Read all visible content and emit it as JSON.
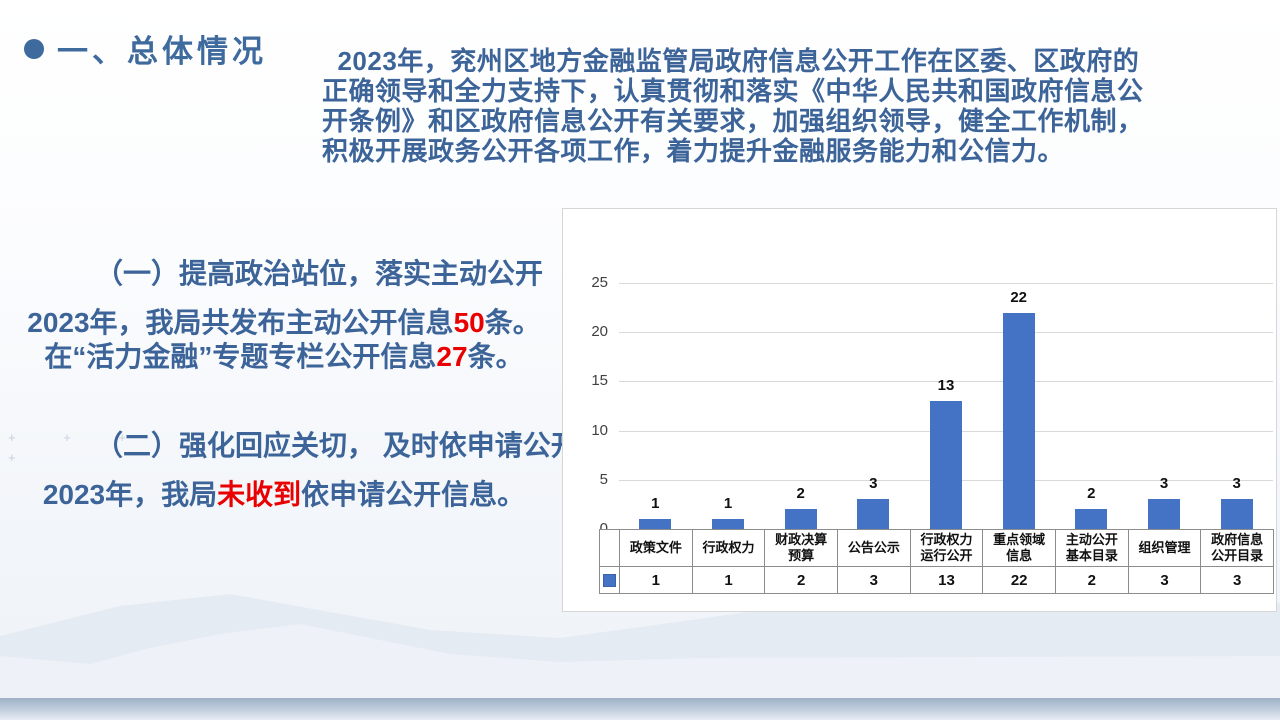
{
  "slide": {
    "title": "一、总体情况",
    "intro": "  2023年，兖州区地方金融监管局政府信息公开工作在区委、区政府的\n正确领导和全力支持下，认真贯彻和落实《中华人民共和国政府信息公\n开条例》和区政府信息公开有关要求，加强组织领导，健全工作机制，\n积极开展政务公开各项工作，着力提升金融服务能力和公信力。",
    "section1": {
      "heading": "（一）提高政治站位，落实主动公开",
      "line1_pre": "2023年，我局共发布主动公开信息",
      "line1_red": "50",
      "line1_post": "条。",
      "line2_pre": "在“活力金融”专题专栏公开信息",
      "line2_red": "27",
      "line2_post": "条。"
    },
    "section2": {
      "heading": "（二）强化回应关切， 及时依申请公开",
      "line_pre": "2023年，我局",
      "line_red": "未收到",
      "line_post": "依申请公开信息。"
    },
    "colors": {
      "text_blue": "#3c6499",
      "bar_blue": "#4472c4",
      "highlight_red": "#e90000"
    }
  },
  "chart_data": {
    "type": "bar",
    "title": "",
    "categories": [
      "政策文件",
      "行政权力",
      "财政决算\n预算",
      "公告公示",
      "行政权力\n运行公开",
      "重点领域\n信息",
      "主动公开\n基本目录",
      "组织管理",
      "政府信息\n公开目录"
    ],
    "values": [
      1,
      1,
      2,
      3,
      13,
      22,
      2,
      3,
      3
    ],
    "xlabel": "",
    "ylabel": "",
    "ylim": [
      0,
      25
    ],
    "yticks": [
      0,
      5,
      10,
      15,
      20,
      25
    ],
    "grid": true,
    "bar_color": "#4472c4",
    "legend_position": "data-table-left",
    "data_table": true
  }
}
